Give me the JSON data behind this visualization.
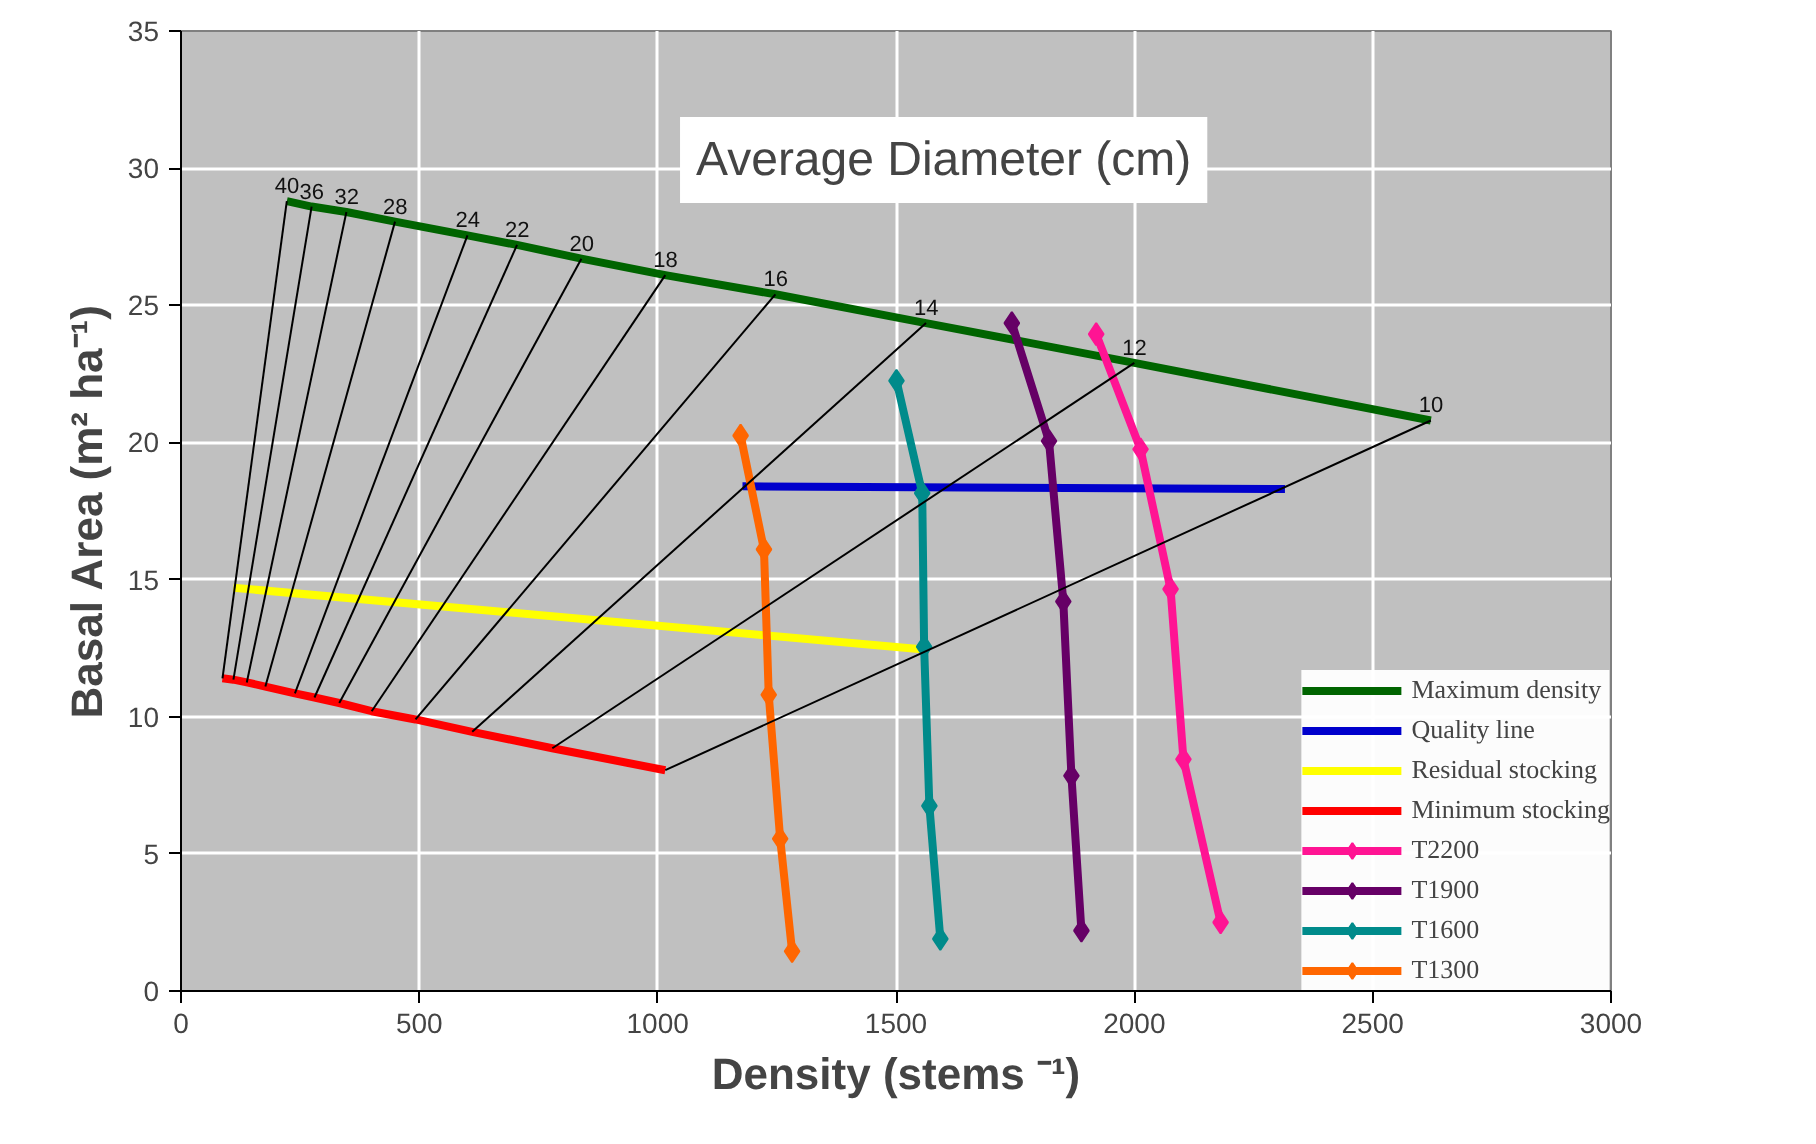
{
  "chart_data": {
    "type": "line",
    "title": "Average Diameter (cm)",
    "xlabel": "Density (stems ⁻¹)",
    "ylabel": "Basal Area (m² ha⁻¹)",
    "xlim": [
      0,
      3000
    ],
    "ylim": [
      0,
      35
    ],
    "xticks": [
      0,
      500,
      1000,
      1500,
      2000,
      2500,
      3000
    ],
    "yticks": [
      0,
      5,
      10,
      15,
      20,
      25,
      30,
      35
    ],
    "grid": true,
    "legend": "bottom right",
    "series": [
      {
        "name": "Maximum density",
        "color": "#006400",
        "marker": "none",
        "x": [
          222,
          274,
          347,
          449,
          601,
          705,
          840,
          1016,
          1247,
          1563,
          2000,
          2622
        ],
        "values": [
          28.8,
          28.6,
          28.4,
          28.05,
          27.55,
          27.2,
          26.7,
          26.1,
          25.4,
          24.35,
          22.9,
          20.8
        ]
      },
      {
        "name": "Quality line",
        "color": "#0000cc",
        "marker": "none",
        "x": [
          1178,
          2316
        ],
        "values": [
          18.4,
          18.3
        ]
      },
      {
        "name": "Residual stocking",
        "color": "#ffff00",
        "marker": "none",
        "x": [
          110,
          1559
        ],
        "values": [
          14.7,
          12.45
        ]
      },
      {
        "name": "Minimum stocking",
        "color": "#ff0000",
        "marker": "none",
        "x": [
          87,
          110,
          138,
          177,
          239,
          280,
          332,
          400,
          492,
          611,
          779,
          1016
        ],
        "values": [
          11.4,
          11.35,
          11.25,
          11.1,
          10.85,
          10.7,
          10.5,
          10.2,
          9.9,
          9.45,
          8.85,
          8.05
        ]
      },
      {
        "name": "T2200",
        "color": "#ff1493",
        "marker": "diamond",
        "x": [
          1920,
          2013,
          2076,
          2103,
          2181
        ],
        "values": [
          23.95,
          19.75,
          14.65,
          8.45,
          2.5
        ]
      },
      {
        "name": "T1900",
        "color": "#660066",
        "marker": "diamond",
        "x": [
          1743,
          1821,
          1851,
          1868,
          1889
        ],
        "values": [
          24.35,
          20.05,
          14.2,
          7.85,
          2.2
        ]
      },
      {
        "name": "T1600",
        "color": "#008b8b",
        "marker": "diamond",
        "x": [
          1501,
          1555,
          1559,
          1570,
          1593
        ],
        "values": [
          22.25,
          18.15,
          12.55,
          6.75,
          1.9
        ]
      },
      {
        "name": "T1300",
        "color": "#ff6600",
        "marker": "diamond",
        "x": [
          1174,
          1223,
          1233,
          1257,
          1282
        ],
        "values": [
          20.25,
          16.1,
          10.8,
          5.55,
          1.45
        ]
      },
      {
        "color": "#000000",
        "marker": "none",
        "x": [
          87,
          222
        ],
        "values": [
          11.4,
          28.8
        ]
      },
      {
        "color": "#000000",
        "marker": "none",
        "x": [
          110,
          274
        ],
        "values": [
          11.35,
          28.6
        ]
      },
      {
        "color": "#000000",
        "marker": "none",
        "x": [
          138,
          347
        ],
        "values": [
          11.25,
          28.4
        ]
      },
      {
        "color": "#000000",
        "marker": "none",
        "x": [
          177,
          449
        ],
        "values": [
          11.1,
          28.05
        ]
      },
      {
        "color": "#000000",
        "marker": "none",
        "x": [
          239,
          601
        ],
        "values": [
          10.85,
          27.55
        ]
      },
      {
        "color": "#000000",
        "marker": "none",
        "x": [
          280,
          705
        ],
        "values": [
          10.7,
          27.2
        ]
      },
      {
        "color": "#000000",
        "marker": "none",
        "x": [
          332,
          840
        ],
        "values": [
          10.5,
          26.7
        ]
      },
      {
        "color": "#000000",
        "marker": "none",
        "x": [
          400,
          1016
        ],
        "values": [
          10.2,
          26.1
        ]
      },
      {
        "color": "#000000",
        "marker": "none",
        "x": [
          492,
          1247
        ],
        "values": [
          9.9,
          25.4
        ]
      },
      {
        "color": "#000000",
        "marker": "none",
        "x": [
          611,
          1563
        ],
        "values": [
          9.45,
          24.35
        ]
      },
      {
        "color": "#000000",
        "marker": "none",
        "x": [
          779,
          2000
        ],
        "values": [
          8.85,
          22.9
        ]
      },
      {
        "color": "#000000",
        "marker": "none",
        "x": [
          1016,
          2622
        ],
        "values": [
          8.05,
          20.8
        ]
      }
    ],
    "annotations": [
      {
        "text": "40",
        "x": 222,
        "y": 28.8
      },
      {
        "text": "36",
        "x": 274,
        "y": 28.6
      },
      {
        "text": "32",
        "x": 347,
        "y": 28.4
      },
      {
        "text": "28",
        "x": 449,
        "y": 28.05
      },
      {
        "text": "24",
        "x": 601,
        "y": 27.55
      },
      {
        "text": "22",
        "x": 705,
        "y": 27.2
      },
      {
        "text": "20",
        "x": 840,
        "y": 26.7
      },
      {
        "text": "18",
        "x": 1016,
        "y": 26.1
      },
      {
        "text": "16",
        "x": 1247,
        "y": 25.4
      },
      {
        "text": "14",
        "x": 1563,
        "y": 24.35
      },
      {
        "text": "12",
        "x": 2000,
        "y": 22.9
      },
      {
        "text": "10",
        "x": 2622,
        "y": 20.8
      }
    ]
  }
}
